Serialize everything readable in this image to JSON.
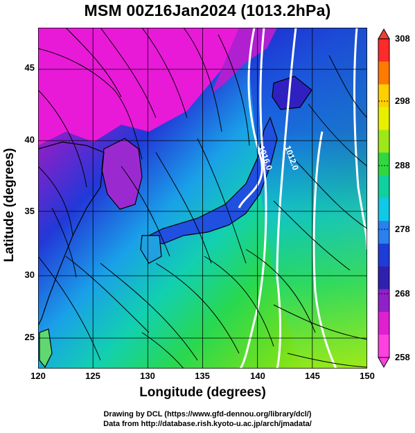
{
  "title": "MSM 00Z16Jan2024 (1013.2hPa)",
  "axes": {
    "xlabel": "Longitude (degrees)",
    "ylabel": "Latitude  (degrees)",
    "xticks": [
      "120",
      "125",
      "130",
      "135",
      "140",
      "145",
      "150"
    ],
    "yticks": [
      "45",
      "40",
      "35",
      "30",
      "25"
    ]
  },
  "colorbar": {
    "ticks": [
      "308",
      "298",
      "288",
      "278",
      "268",
      "258"
    ],
    "colors": [
      "#ff2a2a",
      "#ff7a00",
      "#ffd000",
      "#e8f000",
      "#9ee81a",
      "#30d840",
      "#10d0a0",
      "#10c8e8",
      "#2a80f0",
      "#1e3cd8",
      "#3020b0",
      "#9020c8",
      "#e020d0",
      "#ff40e0"
    ]
  },
  "contours": [
    "1016.0",
    "1012.0"
  ],
  "credits": {
    "line1": "Drawing by DCL (https://www.gfd-dennou.org/library/dcl/)",
    "line2": "Data from http://database.rish.kyoto-u.ac.jp/arch/jmadata/"
  }
}
